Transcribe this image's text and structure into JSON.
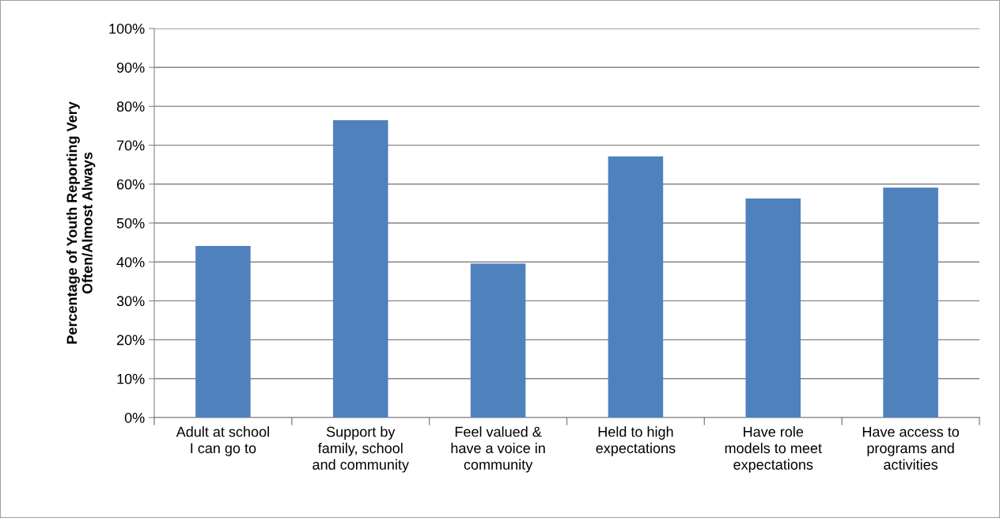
{
  "chart_data": {
    "type": "bar",
    "ylabel": "Percentage of Youth Reporting Very\nOften/Almost Always",
    "categories": [
      "Adult at school\nI can go to",
      "Support by\nfamily, school\nand community",
      "Feel valued &\nhave a voice in\ncommunity",
      "Held to high\nexpectations",
      "Have role\nmodels to meet\nexpectations",
      "Have access to\nprograms and\nactivities"
    ],
    "values": [
      44.1,
      76.4,
      39.6,
      67.1,
      56.3,
      59.1
    ],
    "color": "#4f81bd",
    "ylim": [
      0,
      100
    ],
    "yticks": [
      {
        "value": 0,
        "label": "0%"
      },
      {
        "value": 10,
        "label": "10%"
      },
      {
        "value": 20,
        "label": "20%"
      },
      {
        "value": 30,
        "label": "30%"
      },
      {
        "value": 40,
        "label": "40%"
      },
      {
        "value": 50,
        "label": "50%"
      },
      {
        "value": 60,
        "label": "60%"
      },
      {
        "value": 70,
        "label": "70%"
      },
      {
        "value": 80,
        "label": "80%"
      },
      {
        "value": 90,
        "label": "90%"
      },
      {
        "value": 100,
        "label": "100%"
      }
    ],
    "grid": "y",
    "legend": false
  }
}
